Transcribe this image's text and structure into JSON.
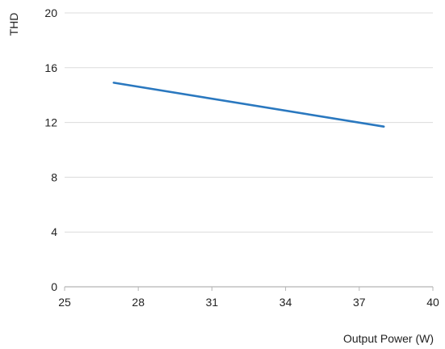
{
  "chart_data": {
    "type": "line",
    "title": "",
    "xlabel": "Output Power (W)",
    "ylabel": "THD",
    "xlim": [
      25,
      40
    ],
    "ylim": [
      0,
      20
    ],
    "x_ticks": [
      "25",
      "28",
      "31",
      "34",
      "37",
      "40"
    ],
    "y_ticks": [
      "0",
      "4",
      "8",
      "12",
      "16",
      "20"
    ],
    "grid": "horizontal",
    "legend": "none",
    "series": [
      {
        "color": "#2a78bf",
        "x": [
          27,
          38
        ],
        "y": [
          14.9,
          11.7
        ]
      }
    ]
  }
}
